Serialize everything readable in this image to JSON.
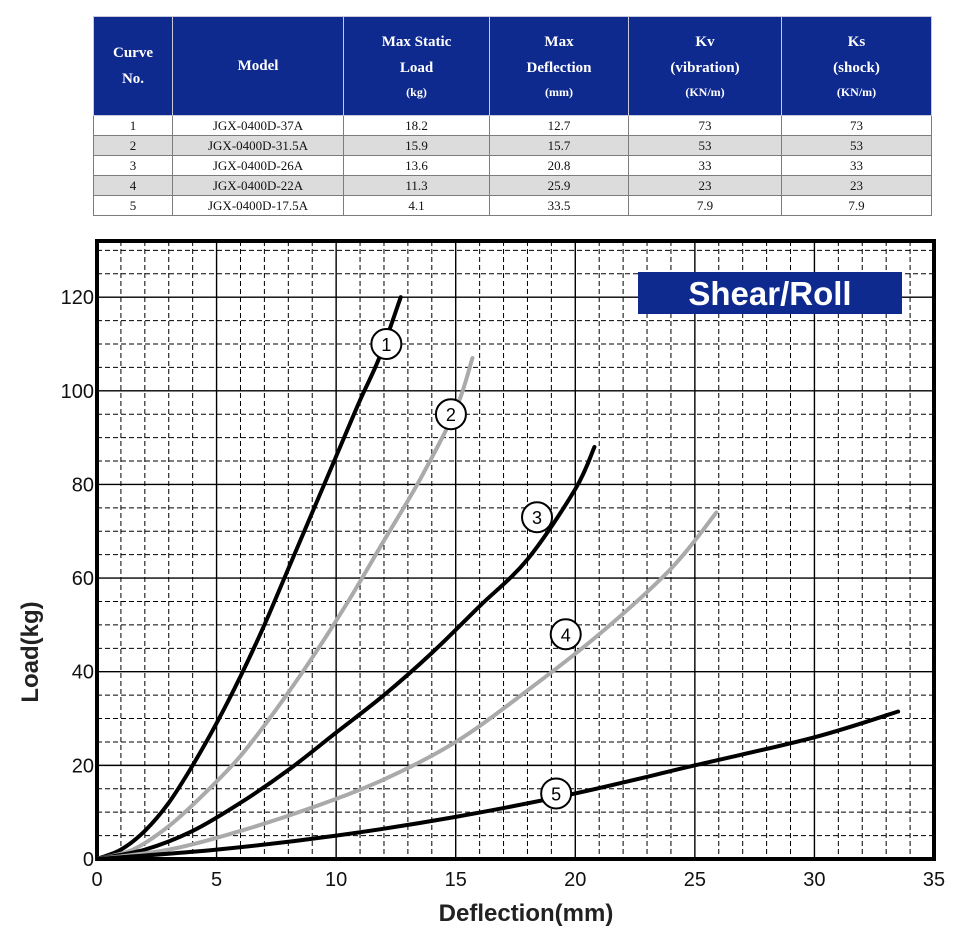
{
  "table": {
    "headers": [
      {
        "lines": [
          "Curve",
          "No."
        ],
        "unit": ""
      },
      {
        "lines": [
          "Model"
        ],
        "unit": ""
      },
      {
        "lines": [
          "Max Static",
          "Load"
        ],
        "unit": "(kg)"
      },
      {
        "lines": [
          "Max",
          "Deflection"
        ],
        "unit": "(mm)"
      },
      {
        "lines": [
          "Kv",
          "(vibration)"
        ],
        "unit": "(KN/m)"
      },
      {
        "lines": [
          "Ks",
          "(shock)"
        ],
        "unit": "(KN/m)"
      }
    ],
    "rows": [
      [
        "1",
        "JGX-0400D-37A",
        "18.2",
        "12.7",
        "73",
        "73"
      ],
      [
        "2",
        "JGX-0400D-31.5A",
        "15.9",
        "15.7",
        "53",
        "53"
      ],
      [
        "3",
        "JGX-0400D-26A",
        "13.6",
        "20.8",
        "33",
        "33"
      ],
      [
        "4",
        "JGX-0400D-22A",
        "11.3",
        "25.9",
        "23",
        "23"
      ],
      [
        "5",
        "JGX-0400D-17.5A",
        "4.1",
        "33.5",
        "7.9",
        "7.9"
      ]
    ]
  },
  "chart_data": {
    "type": "line",
    "badge": "Shear/Roll",
    "xlabel": "Deflection(mm)",
    "ylabel": "Load(kg)",
    "xlim": [
      0,
      35
    ],
    "ylim": [
      0,
      132
    ],
    "x_ticks": [
      "0",
      "5",
      "10",
      "15",
      "20",
      "25",
      "30",
      "35"
    ],
    "y_ticks": [
      "0",
      "20",
      "40",
      "60",
      "80",
      "100",
      "120"
    ],
    "grid": true,
    "series": [
      {
        "marker": "1",
        "color": "#000000",
        "marker_point": [
          12.1,
          110
        ],
        "points": [
          [
            0,
            0
          ],
          [
            1,
            2
          ],
          [
            2,
            6
          ],
          [
            3,
            12
          ],
          [
            4,
            20
          ],
          [
            5,
            29
          ],
          [
            6,
            39
          ],
          [
            7,
            50
          ],
          [
            8,
            62
          ],
          [
            9,
            74
          ],
          [
            10,
            86
          ],
          [
            11,
            98
          ],
          [
            11.8,
            107
          ],
          [
            12.7,
            120
          ]
        ]
      },
      {
        "marker": "2",
        "color": "#aaaaaa",
        "marker_point": [
          14.8,
          95
        ],
        "points": [
          [
            0,
            0
          ],
          [
            1.5,
            2
          ],
          [
            3,
            7
          ],
          [
            4.5,
            14
          ],
          [
            6,
            22
          ],
          [
            7.5,
            32
          ],
          [
            9,
            43
          ],
          [
            10.5,
            55
          ],
          [
            12,
            68
          ],
          [
            13.5,
            81
          ],
          [
            15,
            96
          ],
          [
            15.7,
            107
          ]
        ]
      },
      {
        "marker": "3",
        "color": "#000000",
        "marker_point": [
          18.4,
          73
        ],
        "points": [
          [
            0,
            0
          ],
          [
            2,
            2
          ],
          [
            4,
            6
          ],
          [
            6,
            12
          ],
          [
            8,
            19
          ],
          [
            10,
            27
          ],
          [
            12,
            35
          ],
          [
            14,
            44
          ],
          [
            16,
            54
          ],
          [
            18,
            64
          ],
          [
            20,
            79
          ],
          [
            20.8,
            88
          ]
        ]
      },
      {
        "marker": "4",
        "color": "#aaaaaa",
        "marker_point": [
          19.6,
          48
        ],
        "points": [
          [
            0,
            0
          ],
          [
            3,
            2
          ],
          [
            6,
            6
          ],
          [
            9,
            11
          ],
          [
            12,
            17
          ],
          [
            15,
            25
          ],
          [
            18,
            36
          ],
          [
            21,
            48
          ],
          [
            24,
            62
          ],
          [
            25.9,
            74
          ]
        ]
      },
      {
        "marker": "5",
        "color": "#000000",
        "marker_point": [
          19.2,
          14
        ],
        "points": [
          [
            0,
            0
          ],
          [
            5,
            2
          ],
          [
            10,
            5
          ],
          [
            15,
            9
          ],
          [
            20,
            14
          ],
          [
            25,
            20
          ],
          [
            30,
            26
          ],
          [
            33.5,
            31.5
          ]
        ]
      }
    ]
  }
}
